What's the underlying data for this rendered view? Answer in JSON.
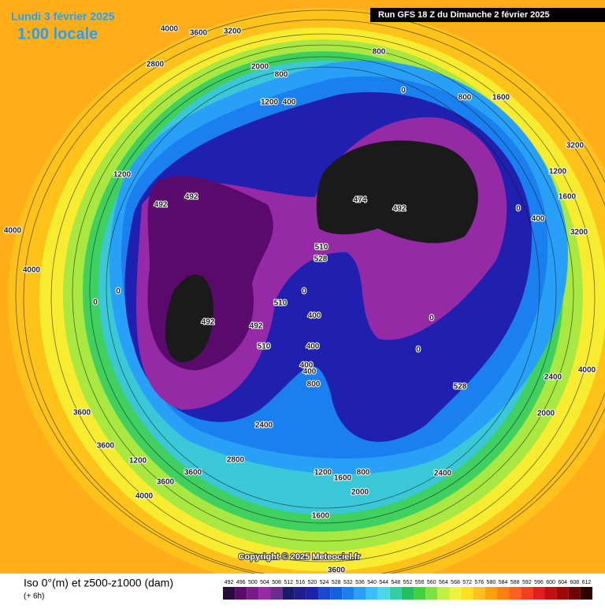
{
  "header": {
    "title": "Lundi 3 février 2025",
    "subtitle": "1:00 locale",
    "run": "Run GFS 18 Z du Dimanche 2 février 2025"
  },
  "footer": {
    "title": "Iso 0°(m) et z500-z1000 (dam)",
    "subtitle": "(+ 6h)",
    "copyright": "Copyright © 2025 Meteociel.fr"
  },
  "legend": {
    "levels": [
      "492",
      "496",
      "500",
      "504",
      "508",
      "512",
      "516",
      "520",
      "524",
      "528",
      "532",
      "536",
      "540",
      "544",
      "548",
      "552",
      "556",
      "560",
      "564",
      "568",
      "572",
      "576",
      "580",
      "584",
      "588",
      "592",
      "596",
      "600",
      "604",
      "608",
      "612"
    ],
    "colors": [
      "#2a0a3a",
      "#5a0a6a",
      "#7a1a8a",
      "#962aa6",
      "#6a2a90",
      "#1a1a6a",
      "#1e1e8c",
      "#2020b0",
      "#1848d0",
      "#1060e0",
      "#1a80f0",
      "#28a0f8",
      "#3ac0f8",
      "#4ad8e8",
      "#30d0a0",
      "#20c060",
      "#40d040",
      "#80e040",
      "#c0f040",
      "#f0f040",
      "#ffe020",
      "#ffc020",
      "#ffa010",
      "#ff8010",
      "#ff6020",
      "#f04020",
      "#e02020",
      "#c01010",
      "#a00808",
      "#700404",
      "#300000"
    ]
  },
  "map": {
    "labels": [
      "4000",
      "3600",
      "3200",
      "2800",
      "2000",
      "800",
      "800",
      "1200",
      "400",
      "0",
      "800",
      "1600",
      "3200",
      "1200",
      "492",
      "492",
      "474",
      "492",
      "1200",
      "1600",
      "0",
      "400",
      "3200",
      "510",
      "528",
      "4000",
      "4000",
      "0",
      "0",
      "510",
      "0",
      "492",
      "492",
      "510",
      "400",
      "400",
      "400",
      "400",
      "800",
      "0",
      "0",
      "528",
      "4000",
      "3600",
      "3600",
      "1200",
      "3600",
      "3600",
      "4000",
      "2400",
      "2800",
      "1200",
      "1600",
      "2000",
      "800",
      "1600",
      "3600",
      "2400",
      "2000",
      "2400"
    ]
  }
}
